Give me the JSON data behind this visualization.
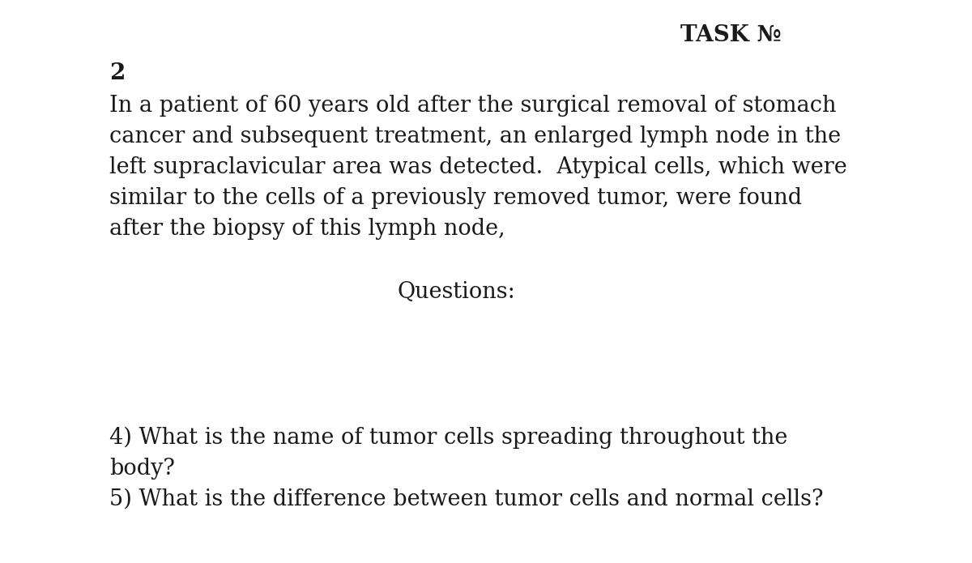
{
  "background_color": "#ffffff",
  "title": "TASK №",
  "title_fontsize": 20,
  "title_fontweight": "bold",
  "task_number": "2",
  "task_number_fontsize": 20,
  "task_number_fontweight": "bold",
  "body_text_lines": [
    "In a patient of 60 years old after the surgical removal of stomach",
    "cancer and subsequent treatment, an enlarged lymph node in the",
    "left supraclavicular area was detected.  Atypical cells, which were",
    "similar to the cells of a previously removed tumor, were found",
    "after the biopsy of this lymph node,"
  ],
  "body_fontsize": 19.5,
  "questions_label": "Questions:",
  "questions_fontsize": 19.5,
  "question_lines": [
    "4) What is the name of tumor cells spreading throughout the",
    "body?",
    "5) What is the difference between tumor cells and normal cells?"
  ],
  "question_fontsize": 19.5,
  "text_color": "#1a1a1a",
  "font_family": "DejaVu Serif"
}
